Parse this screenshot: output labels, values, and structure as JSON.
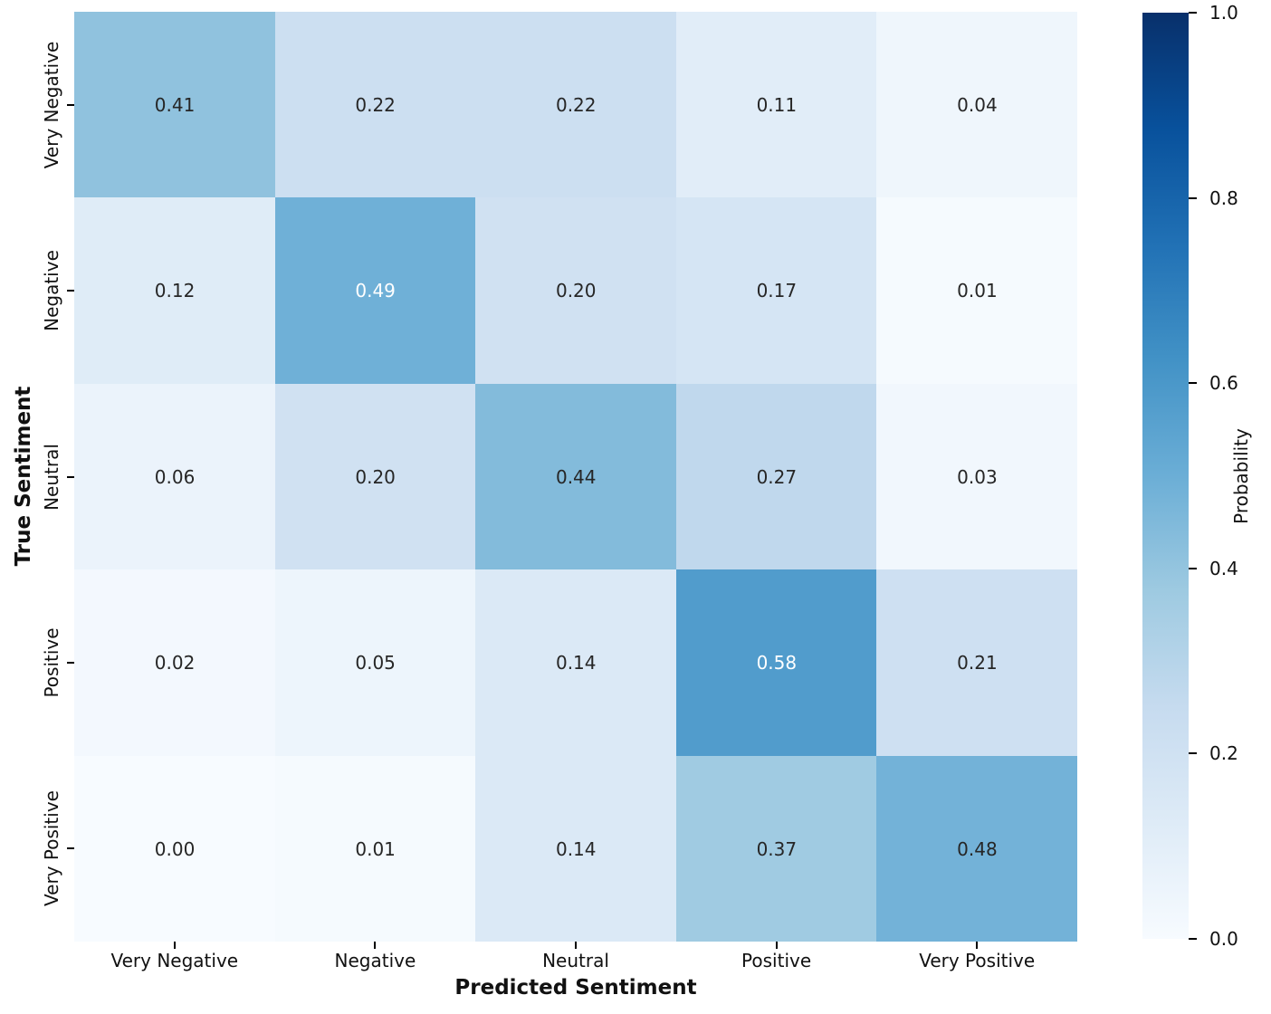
{
  "chart_data": {
    "type": "heatmap",
    "title": "",
    "xlabel": "Predicted Sentiment",
    "ylabel": "True Sentiment",
    "x_categories": [
      "Very Negative",
      "Negative",
      "Neutral",
      "Positive",
      "Very Positive"
    ],
    "y_categories": [
      "Very Negative",
      "Negative",
      "Neutral",
      "Positive",
      "Very Positive"
    ],
    "values": [
      [
        0.41,
        0.22,
        0.22,
        0.11,
        0.04
      ],
      [
        0.12,
        0.49,
        0.2,
        0.17,
        0.01
      ],
      [
        0.06,
        0.2,
        0.44,
        0.27,
        0.03
      ],
      [
        0.02,
        0.05,
        0.14,
        0.58,
        0.21
      ],
      [
        0.0,
        0.01,
        0.14,
        0.37,
        0.48
      ]
    ],
    "vmin": 0.0,
    "vmax": 1.0,
    "grid": false,
    "legend_position": "none",
    "colorbar": {
      "label": "Probability",
      "ticks": [
        1.0,
        0.8,
        0.6,
        0.4,
        0.2,
        0.0
      ]
    },
    "colormap": {
      "name": "Blues",
      "stops": [
        [
          0.0,
          "#f7fbff"
        ],
        [
          0.125,
          "#deebf7"
        ],
        [
          0.25,
          "#c6dbef"
        ],
        [
          0.375,
          "#9ecae1"
        ],
        [
          0.5,
          "#6baed6"
        ],
        [
          0.625,
          "#4292c6"
        ],
        [
          0.75,
          "#2171b5"
        ],
        [
          0.875,
          "#08519c"
        ],
        [
          1.0,
          "#08306b"
        ]
      ]
    },
    "annotation": {
      "decimals": 2,
      "dark_text_color": "#262626",
      "light_text_color": "#ffffff",
      "light_text_min_value": 0.49
    }
  }
}
